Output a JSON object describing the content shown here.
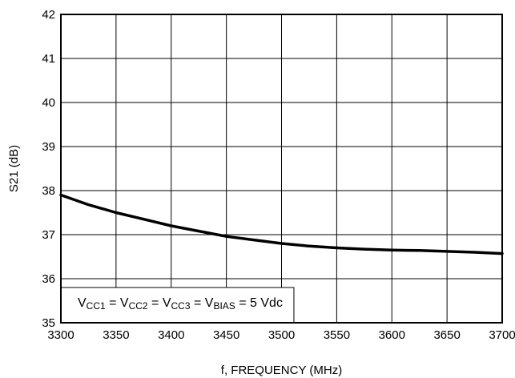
{
  "chart_data": {
    "type": "line",
    "xlabel": "f, FREQUENCY (MHz)",
    "ylabel": "S21 (dB)",
    "xlim": [
      3300,
      3700
    ],
    "ylim": [
      35,
      42
    ],
    "x_ticks": [
      3300,
      3350,
      3400,
      3450,
      3500,
      3550,
      3600,
      3650,
      3700
    ],
    "y_ticks": [
      35,
      36,
      37,
      38,
      39,
      40,
      41,
      42
    ],
    "grid": true,
    "series": [
      {
        "x": [
          3300,
          3325,
          3350,
          3375,
          3400,
          3425,
          3450,
          3475,
          3500,
          3525,
          3550,
          3575,
          3600,
          3625,
          3650,
          3675,
          3700
        ],
        "y": [
          37.9,
          37.68,
          37.5,
          37.35,
          37.2,
          37.08,
          36.96,
          36.88,
          36.8,
          36.74,
          36.7,
          36.67,
          36.65,
          36.64,
          36.62,
          36.6,
          36.57
        ]
      }
    ],
    "annotation": {
      "parts": [
        {
          "text": "V",
          "sub": false
        },
        {
          "text": "CC1",
          "sub": true
        },
        {
          "text": " = V",
          "sub": false
        },
        {
          "text": "CC2",
          "sub": true
        },
        {
          "text": " = V",
          "sub": false
        },
        {
          "text": "CC3",
          "sub": true
        },
        {
          "text": " = V",
          "sub": false
        },
        {
          "text": "BIAS",
          "sub": true
        },
        {
          "text": " = 5 Vdc",
          "sub": false
        }
      ]
    }
  }
}
